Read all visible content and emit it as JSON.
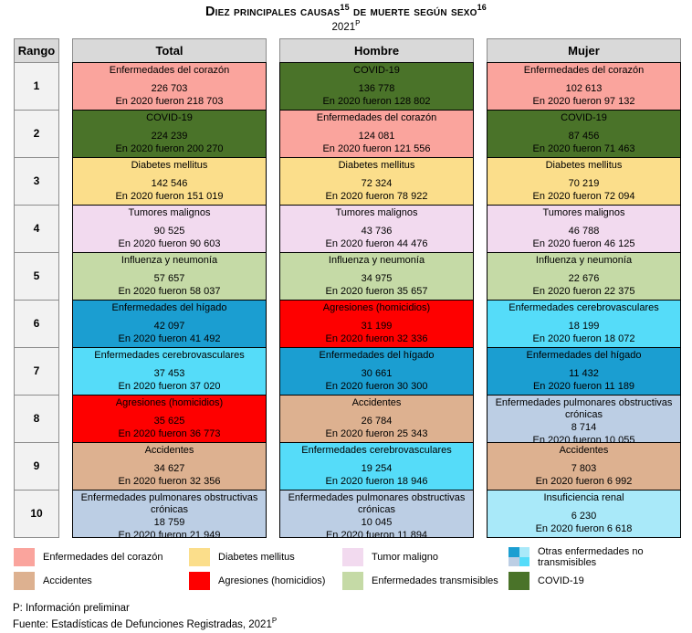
{
  "title": {
    "part1": "Diez principales causas",
    "sup1": "15",
    "part2": " de muerte según sexo",
    "sup2": "16",
    "subtitle_year": "2021",
    "subtitle_sup": "P"
  },
  "colors": {
    "header": "#D9D9D9",
    "rank": "#F2F2F2",
    "corazon": "#FAA49D",
    "covid": "#4A7329",
    "diabetes": "#FBDE8B",
    "tumores": "#F2DAEF",
    "transmisibles": "#C5DAA6",
    "higado": "#1B9ED1",
    "cerebro": "#55DCF9",
    "agresiones": "#FE0000",
    "accidentes": "#DDB190",
    "epoc": "#BCCEE4",
    "renal": "#A9E9F9"
  },
  "table": {
    "headers": {
      "rank": "Rango",
      "total": "Total",
      "hombre": "Hombre",
      "mujer": "Mujer"
    },
    "rows": [
      {
        "rank": "1",
        "total": {
          "name": "Enfermedades del corazón",
          "value": "226 703",
          "prev": "En 2020 fueron 218 703"
        },
        "hombre": {
          "name": "COVID-19",
          "value": "136 778",
          "prev": "En 2020 fueron 128 802"
        },
        "mujer": {
          "name": "Enfermedades del corazón",
          "value": "102 613",
          "prev": "En 2020 fueron 97 132"
        }
      },
      {
        "rank": "2",
        "total": {
          "name": "COVID-19",
          "value": "224 239",
          "prev": "En 2020 fueron 200 270"
        },
        "hombre": {
          "name": "Enfermedades del corazón",
          "value": "124 081",
          "prev": "En 2020 fueron 121 556"
        },
        "mujer": {
          "name": "COVID-19",
          "value": "87 456",
          "prev": "En 2020 fueron 71 463"
        }
      },
      {
        "rank": "3",
        "total": {
          "name": "Diabetes mellitus",
          "value": "142 546",
          "prev": "En 2020 fueron 151 019"
        },
        "hombre": {
          "name": "Diabetes mellitus",
          "value": "72 324",
          "prev": "En 2020 fueron 78 922"
        },
        "mujer": {
          "name": "Diabetes mellitus",
          "value": "70 219",
          "prev": "En 2020 fueron 72 094"
        }
      },
      {
        "rank": "4",
        "total": {
          "name": "Tumores malignos",
          "value": "90 525",
          "prev": "En 2020 fueron 90 603"
        },
        "hombre": {
          "name": "Tumores malignos",
          "value": "43 736",
          "prev": "En 2020 fueron 44 476"
        },
        "mujer": {
          "name": "Tumores malignos",
          "value": "46 788",
          "prev": "En 2020 fueron 46 125"
        }
      },
      {
        "rank": "5",
        "total": {
          "name": "Influenza y neumonía",
          "value": "57 657",
          "prev": "En 2020 fueron 58 037"
        },
        "hombre": {
          "name": "Influenza y neumonía",
          "value": "34 975",
          "prev": "En 2020 fueron 35 657"
        },
        "mujer": {
          "name": "Influenza y neumonía",
          "value": "22 676",
          "prev": "En 2020 fueron 22 375"
        }
      },
      {
        "rank": "6",
        "total": {
          "name": "Enfermedades del hígado",
          "value": "42 097",
          "prev": "En 2020 fueron 41 492"
        },
        "hombre": {
          "name": "Agresiones (homicidios)",
          "value": "31 199",
          "prev": "En 2020 fueron 32 336"
        },
        "mujer": {
          "name": "Enfermedades cerebrovasculares",
          "value": "18 199",
          "prev": "En 2020 fueron 18 072"
        }
      },
      {
        "rank": "7",
        "total": {
          "name": "Enfermedades cerebrovasculares",
          "value": "37 453",
          "prev": "En 2020 fueron 37 020"
        },
        "hombre": {
          "name": "Enfermedades del hígado",
          "value": "30 661",
          "prev": "En 2020 fueron 30 300"
        },
        "mujer": {
          "name": "Enfermedades del hígado",
          "value": "11 432",
          "prev": "En 2020 fueron 11 189"
        }
      },
      {
        "rank": "8",
        "total": {
          "name": "Agresiones (homicidios)",
          "value": "35 625",
          "prev": "En 2020 fueron 36 773"
        },
        "hombre": {
          "name": "Accidentes",
          "value": "26 784",
          "prev": "En 2020 fueron 25 343"
        },
        "mujer": {
          "name": "Enfermedades pulmonares obstructivas crónicas",
          "value": "8 714",
          "prev": "En 2020 fueron 10 055"
        }
      },
      {
        "rank": "9",
        "total": {
          "name": "Accidentes",
          "value": "34 627",
          "prev": "En 2020 fueron 32 356"
        },
        "hombre": {
          "name": "Enfermedades cerebrovasculares",
          "value": "19 254",
          "prev": "En 2020 fueron 18 946"
        },
        "mujer": {
          "name": "Accidentes",
          "value": "7 803",
          "prev": "En 2020 fueron 6 992"
        }
      },
      {
        "rank": "10",
        "total": {
          "name": "Enfermedades pulmonares obstructivas crónicas",
          "value": "18 759",
          "prev": "En 2020 fueron 21 949"
        },
        "hombre": {
          "name": "Enfermedades pulmonares obstructivas crónicas",
          "value": "10 045",
          "prev": "En 2020 fueron 11 894"
        },
        "mujer": {
          "name": "Insuficiencia renal",
          "value": "6 230",
          "prev": "En 2020 fueron 6 618"
        }
      }
    ]
  },
  "legend": {
    "items": [
      {
        "label": "Enfermedades del corazón"
      },
      {
        "label": "Diabetes mellitus"
      },
      {
        "label": "Tumor maligno"
      },
      {
        "label": "Otras enfermedades no transmisibles"
      },
      {
        "label": "Accidentes"
      },
      {
        "label": "Agresiones (homicidios)"
      },
      {
        "label": "Enfermedades transmisibles"
      },
      {
        "label": "COVID-19"
      }
    ]
  },
  "footer": {
    "line1": "P: Información preliminar",
    "line2": "Fuente: Estadísticas de Defunciones Registradas, 2021",
    "line2_sup": "P"
  }
}
